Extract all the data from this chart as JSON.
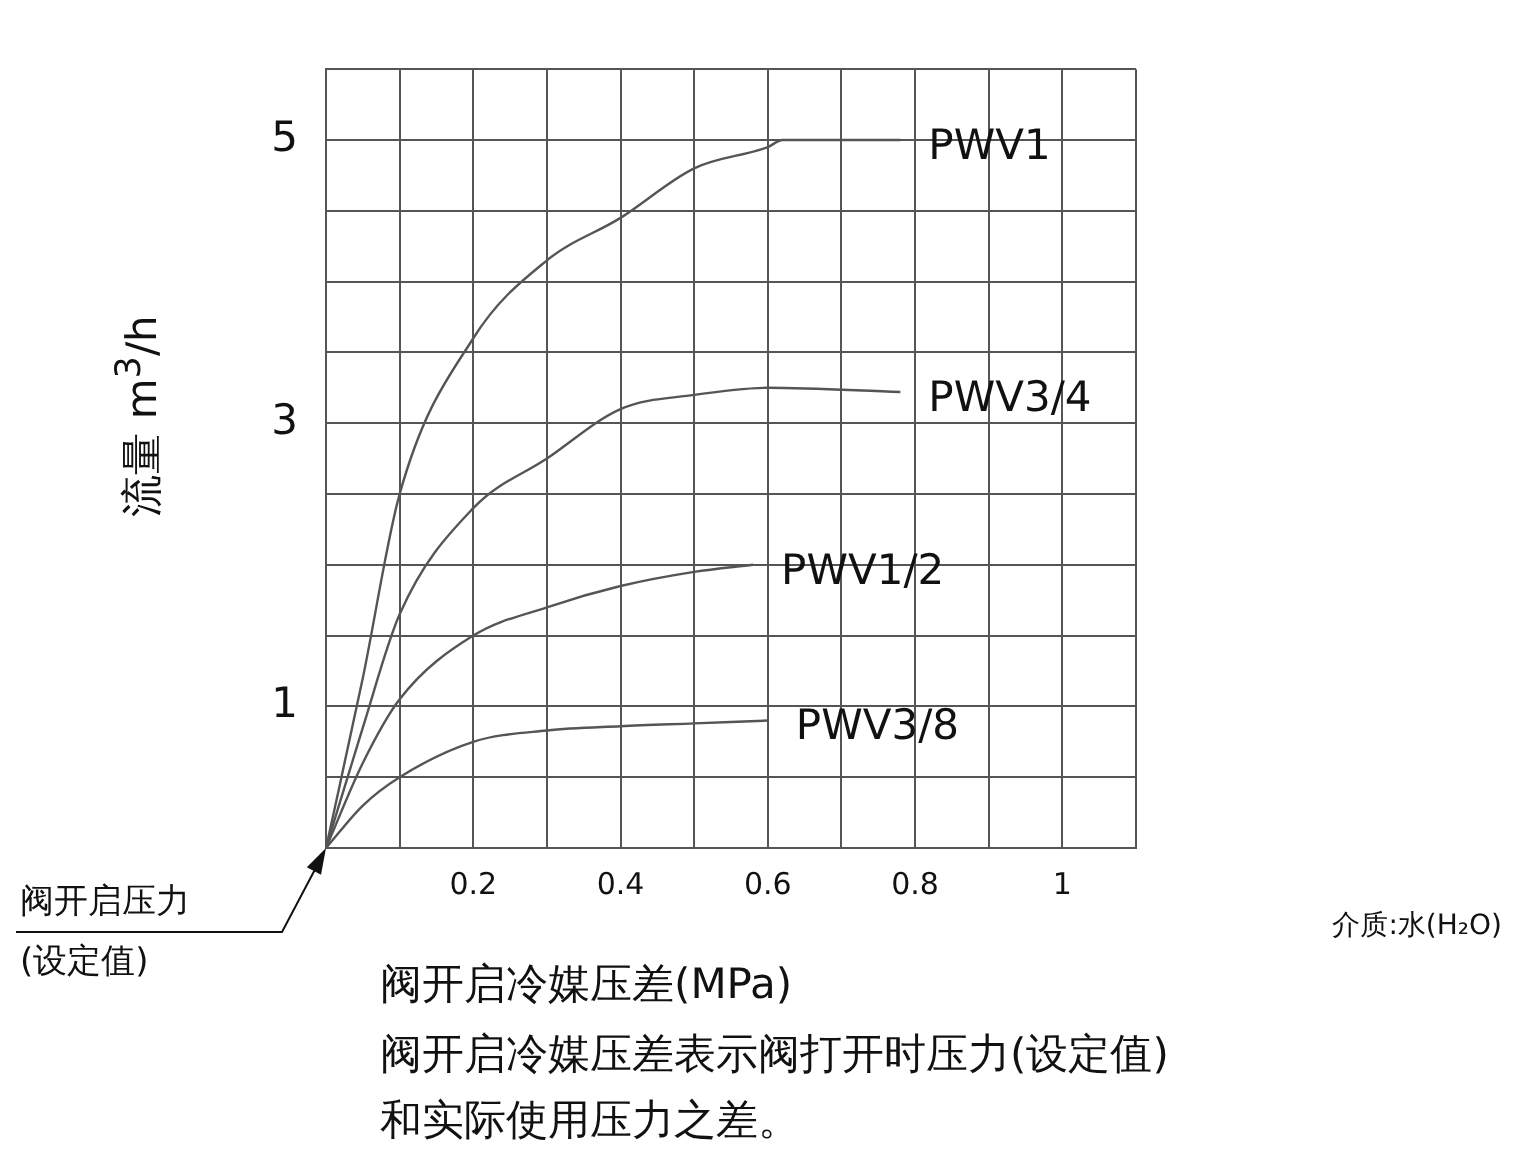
{
  "chart_data": {
    "type": "line",
    "xlabel": "阀开启冷媒压差(MPa)",
    "ylabel": "流量 m$^{3}$/h",
    "xlim": [
      0,
      1.1
    ],
    "ylim": [
      0,
      5.5
    ],
    "xticks": [
      {
        "value": 0,
        "label": null
      },
      {
        "value": 0.1,
        "label": null
      },
      0.2,
      {
        "value": 0.3,
        "label": null
      },
      0.4,
      {
        "value": 0.5,
        "label": null
      },
      0.6,
      {
        "value": 0.7,
        "label": null
      },
      0.8,
      {
        "value": 0.9,
        "label": null
      },
      1,
      {
        "value": 1.1,
        "label": null
      }
    ],
    "yticks": [
      {
        "value": 0,
        "label": null
      },
      {
        "value": 0.5,
        "label": null
      },
      1,
      {
        "value": 1.5,
        "label": null
      },
      {
        "value": 2,
        "label": null
      },
      {
        "value": 2.5,
        "label": null
      },
      3,
      {
        "value": 3.5,
        "label": null
      },
      {
        "value": 4,
        "label": null
      },
      {
        "value": 4.5,
        "label": null
      },
      5,
      {
        "value": 5.5,
        "label": null
      }
    ],
    "grid": true,
    "legend": false,
    "marker": "none",
    "line_style": "solid",
    "series": [
      {
        "name": "PWV1",
        "color": "#555555",
        "x": [
          0,
          0.05,
          0.1,
          0.2,
          0.3,
          0.4,
          0.5,
          0.6,
          0.62,
          0.78
        ],
        "values": [
          0,
          1.2,
          2.5,
          3.6,
          4.15,
          4.45,
          4.8,
          4.95,
          5,
          5
        ]
      },
      {
        "name": "PWV3/4",
        "color": "#555555",
        "x": [
          0,
          0.05,
          0.1,
          0.2,
          0.3,
          0.4,
          0.5,
          0.6,
          0.78
        ],
        "values": [
          0,
          0.85,
          1.65,
          2.4,
          2.75,
          3.1,
          3.2,
          3.25,
          3.22
        ]
      },
      {
        "name": "PWV1/2",
        "color": "#555555",
        "x": [
          0,
          0.05,
          0.1,
          0.2,
          0.3,
          0.4,
          0.5,
          0.58
        ],
        "values": [
          0,
          0.6,
          1.05,
          1.5,
          1.7,
          1.85,
          1.95,
          2
        ]
      },
      {
        "name": "PWV3/8",
        "color": "#555555",
        "x": [
          0,
          0.05,
          0.1,
          0.2,
          0.3,
          0.4,
          0.5,
          0.6
        ],
        "values": [
          0,
          0.3,
          0.5,
          0.75,
          0.83,
          0.86,
          0.88,
          0.9
        ]
      }
    ],
    "annotations": [
      {
        "text": "阀开启压力\n(设定值)",
        "x": 0,
        "y": 0
      },
      "介质:水(H₂O)",
      "阀开启冷媒压差表示阀打开时压力(设定值)和实际使用压力之差。"
    ]
  }
}
